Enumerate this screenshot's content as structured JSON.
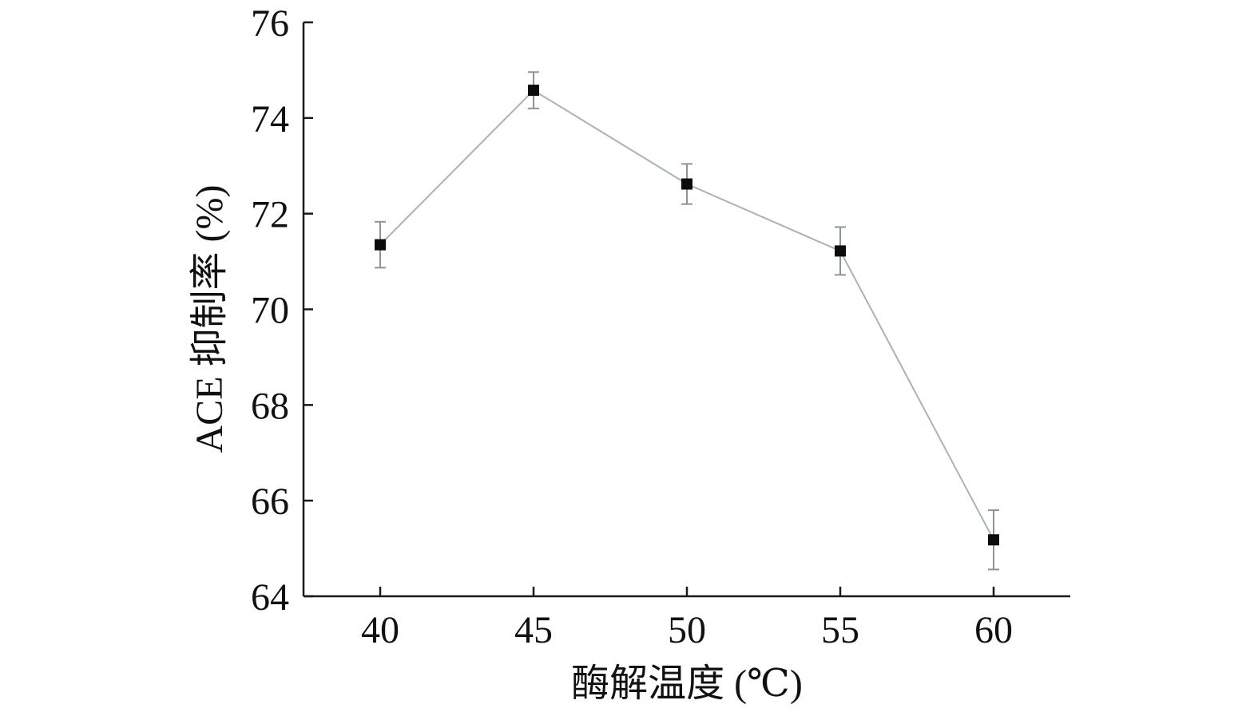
{
  "chart_data": {
    "type": "line",
    "title": "",
    "xlabel": "酶解温度 (℃)",
    "ylabel": "ACE 抑制率 (%)",
    "x": [
      40,
      45,
      50,
      55,
      60
    ],
    "x_tick_labels": [
      "40",
      "45",
      "50",
      "55",
      "60"
    ],
    "xlim": [
      37.5,
      62.5
    ],
    "ylim": [
      64,
      76
    ],
    "y_ticks": [
      64,
      66,
      68,
      70,
      72,
      74,
      76
    ],
    "y_tick_labels": [
      "64",
      "66",
      "68",
      "70",
      "72",
      "74",
      "76"
    ],
    "grid": false,
    "legend": "none",
    "series": [
      {
        "values": [
          71.35,
          74.58,
          72.62,
          71.22,
          65.18
        ],
        "errors": [
          0.48,
          0.38,
          0.42,
          0.5,
          0.62
        ],
        "line_color": "#a9b3b6",
        "marker": "square",
        "marker_color": "#0c0c0c",
        "error_bar_color": "#8c9596"
      }
    ]
  }
}
